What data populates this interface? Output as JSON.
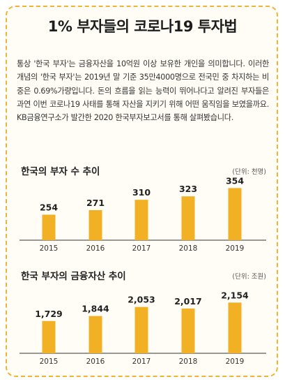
{
  "title": "1% 부자들의 코로나19 투자법",
  "intro": "통상 '한국 부자'는 금융자산을 10억원 이상 보유한 개인을 의미합니다. 이러한 개념의 '한국 부자'는 2019년 말 기준 35만4000명으로 전국민 중 차지하는 비중은 0.69%가량입니다. 돈의 흐름을 읽는 능력이 뛰어나다고 알려진 부자들은 과연 이번 코로나19 사태를 통해 자산을 지키기 위해 어떤 움직임을 보였을까요. KB금융연구소가 발간한 2020 한국부자보고서를 통해 살펴봤습니다.",
  "colors": {
    "bar": "#f2b124",
    "border": "#f2b233",
    "axis": "#333333"
  },
  "chart_data": [
    {
      "type": "bar",
      "title": "한국의 부자 수 추이",
      "unit": "(단위: 천명)",
      "categories": [
        "2015",
        "2016",
        "2017",
        "2018",
        "2019"
      ],
      "values": [
        254,
        271,
        310,
        323,
        354
      ],
      "value_labels": [
        "254",
        "271",
        "310",
        "323",
        "354"
      ],
      "ylim": [
        0,
        380
      ],
      "grid": false
    },
    {
      "type": "bar",
      "title": "한국 부자의 금융자산 추이",
      "unit": "(단위: 조원)",
      "categories": [
        "2015",
        "2016",
        "2017",
        "2018",
        "2019"
      ],
      "values": [
        1729,
        1844,
        2053,
        2017,
        2154
      ],
      "value_labels": [
        "1,729",
        "1,844",
        "2,053",
        "2,017",
        "2,154"
      ],
      "ylim": [
        0,
        2300
      ],
      "grid": false
    }
  ]
}
